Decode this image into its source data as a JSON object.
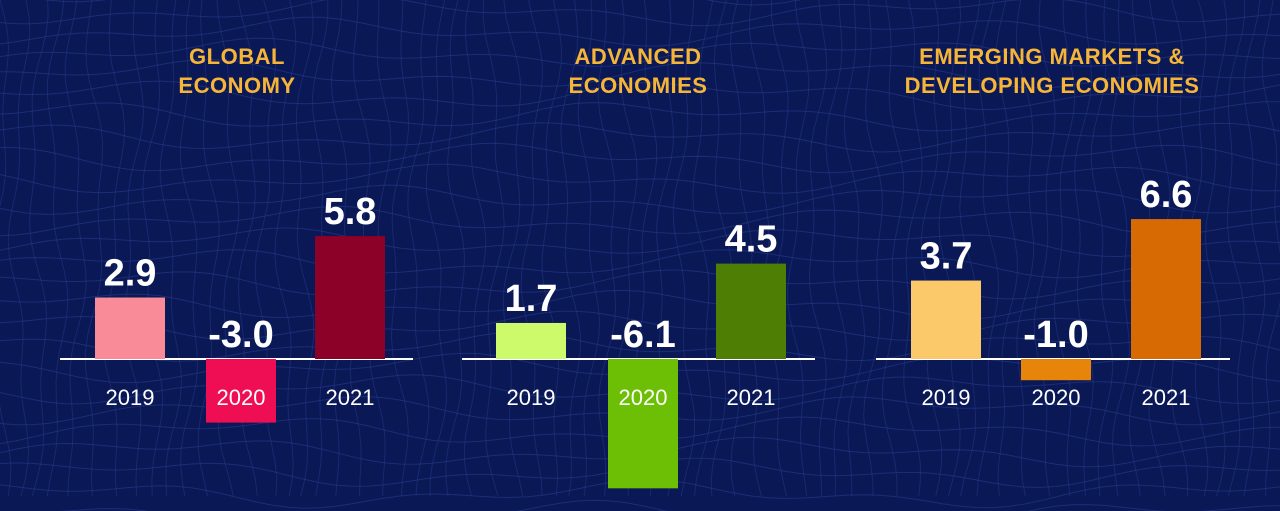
{
  "colors": {
    "background": "#0a1856",
    "title": "#f7b538",
    "text": "#ffffff",
    "grid": "#2a3f8f"
  },
  "chart_data": [
    {
      "type": "bar",
      "title": "GLOBAL\nECONOMY",
      "categories": [
        "2019",
        "2020",
        "2021"
      ],
      "values": [
        2.9,
        -3.0,
        5.8
      ],
      "value_labels": [
        "2.9",
        "-3.0",
        "5.8"
      ],
      "colors": [
        "#f98b98",
        "#ef0e54",
        "#8c0128"
      ],
      "highlight_category": "2020"
    },
    {
      "type": "bar",
      "title": "ADVANCED\nECONOMIES",
      "categories": [
        "2019",
        "2020",
        "2021"
      ],
      "values": [
        1.7,
        -6.1,
        4.5
      ],
      "value_labels": [
        "1.7",
        "-6.1",
        "4.5"
      ],
      "colors": [
        "#cdfa6a",
        "#6cbf04",
        "#4e7e03"
      ],
      "highlight_category": "2020"
    },
    {
      "type": "bar",
      "title": "EMERGING MARKETS &\nDEVELOPING ECONOMIES",
      "categories": [
        "2019",
        "2020",
        "2021"
      ],
      "values": [
        3.7,
        -1.0,
        6.6
      ],
      "value_labels": [
        "3.7",
        "-1.0",
        "6.6"
      ],
      "colors": [
        "#fbc96a",
        "#e7840a",
        "#d86a03"
      ],
      "highlight_category": "2020"
    }
  ]
}
